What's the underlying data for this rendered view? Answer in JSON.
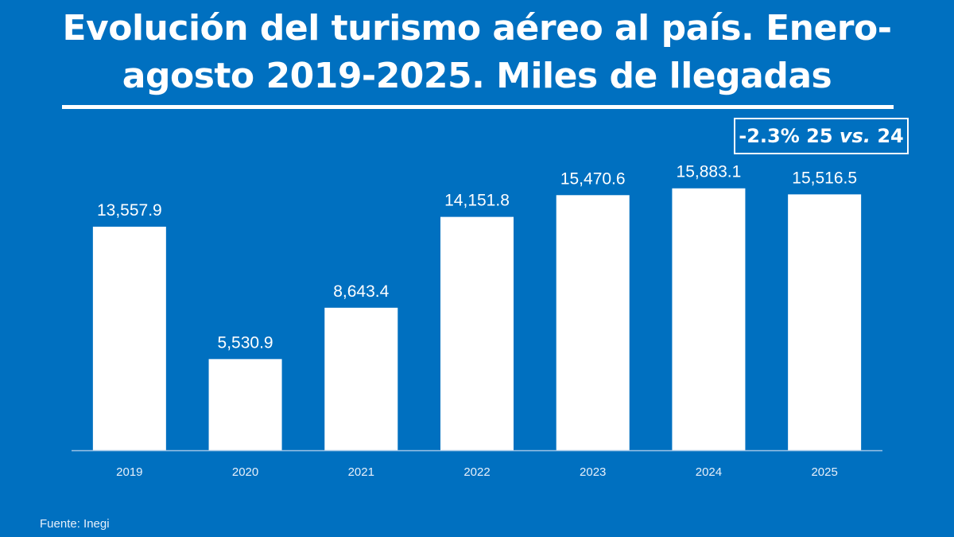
{
  "colors": {
    "background": "#0070C0",
    "bars": "#FFFFFF",
    "axis": "#9DC3E6"
  },
  "title_line1": "Evolución del turismo aéreo al país. Enero-",
  "title_line2": "agosto 2019-2025. Miles de llegadas",
  "callout": {
    "value": "-2.3% 25",
    "vs": "vs.",
    "tail": "24"
  },
  "source": "Fuente: Inegi",
  "chart_data": {
    "type": "bar",
    "title": "Evolución del turismo aéreo al país. Enero-agosto 2019-2025. Miles de llegadas",
    "categories": [
      "2019",
      "2020",
      "2021",
      "2022",
      "2023",
      "2024",
      "2025"
    ],
    "values": [
      13557.9,
      5530.9,
      8643.4,
      14151.8,
      15470.6,
      15883.1,
      15516.5
    ],
    "labels": [
      "13,557.9",
      "5,530.9",
      "8,643.4",
      "14,151.8",
      "15,470.6",
      "15,883.1",
      "15,516.5"
    ],
    "xlabel": "",
    "ylabel": "",
    "ylim": [
      0,
      20000
    ],
    "grid": false,
    "legend": "none"
  }
}
